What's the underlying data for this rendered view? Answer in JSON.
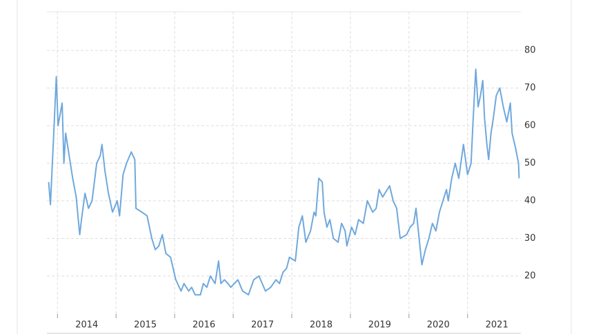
{
  "chart_data": {
    "type": "line",
    "x": [
      2013.85,
      2013.88,
      2013.94,
      2013.98,
      2014.01,
      2014.08,
      2014.11,
      2014.14,
      2014.2,
      2014.26,
      2014.32,
      2014.38,
      2014.41,
      2014.47,
      2014.53,
      2014.59,
      2014.67,
      2014.73,
      2014.76,
      2014.81,
      2014.87,
      2014.94,
      2015.02,
      2015.06,
      2015.12,
      2015.18,
      2015.26,
      2015.32,
      2015.34,
      2015.44,
      2015.53,
      2015.61,
      2015.67,
      2015.73,
      2015.79,
      2015.85,
      2015.93,
      2016.02,
      2016.11,
      2016.16,
      2016.24,
      2016.29,
      2016.35,
      2016.44,
      2016.49,
      2016.55,
      2016.61,
      2016.69,
      2016.75,
      2016.79,
      2016.85,
      2016.91,
      2016.96,
      2017.02,
      2017.08,
      2017.16,
      2017.26,
      2017.35,
      2017.44,
      2017.55,
      2017.64,
      2017.73,
      2017.79,
      2017.85,
      2017.91,
      2017.96,
      2018.06,
      2018.12,
      2018.18,
      2018.24,
      2018.32,
      2018.38,
      2018.41,
      2018.46,
      2018.52,
      2018.55,
      2018.6,
      2018.65,
      2018.71,
      2018.79,
      2018.85,
      2018.91,
      2018.94,
      2019.02,
      2019.08,
      2019.14,
      2019.22,
      2019.29,
      2019.38,
      2019.44,
      2019.49,
      2019.55,
      2019.67,
      2019.73,
      2019.79,
      2019.85,
      2019.96,
      2020.02,
      2020.08,
      2020.12,
      2020.16,
      2020.22,
      2020.28,
      2020.34,
      2020.4,
      2020.46,
      2020.52,
      2020.58,
      2020.64,
      2020.67,
      2020.73,
      2020.79,
      2020.85,
      2020.93,
      2021.0,
      2021.06,
      2021.09,
      2021.14,
      2021.18,
      2021.22,
      2021.26,
      2021.29,
      2021.33,
      2021.36,
      2021.4,
      2021.44,
      2021.49,
      2021.55,
      2021.61,
      2021.67,
      2021.73,
      2021.76,
      2021.82,
      2021.87,
      2021.88
    ],
    "values": [
      45,
      39,
      59,
      73,
      60,
      66,
      50,
      58,
      52,
      46,
      41,
      31,
      35,
      42,
      38,
      40,
      50,
      52,
      55,
      48,
      42,
      37,
      40,
      36,
      47,
      50,
      53,
      51,
      38,
      37,
      36,
      30,
      27,
      28,
      31,
      26,
      25,
      19,
      16,
      18,
      16,
      17,
      15,
      15,
      18,
      17,
      20,
      18,
      24,
      18,
      19,
      18,
      17,
      18,
      19,
      16,
      15,
      19,
      20,
      16,
      17,
      19,
      18,
      21,
      22,
      25,
      24,
      33,
      36,
      29,
      32,
      37,
      36,
      46,
      45,
      37,
      33,
      35,
      30,
      29,
      34,
      32,
      28,
      33,
      31,
      35,
      34,
      40,
      37,
      38,
      43,
      41,
      44,
      40,
      38,
      30,
      31,
      33,
      34,
      38,
      32,
      23,
      27,
      30,
      34,
      32,
      37,
      40,
      43,
      40,
      46,
      50,
      46,
      55,
      47,
      50,
      60,
      75,
      65,
      68,
      72,
      62,
      55,
      51,
      58,
      62,
      68,
      70,
      65,
      61,
      66,
      58,
      54,
      50,
      46
    ],
    "color": "#6fa8dc",
    "xlim": [
      2013.82,
      2021.91
    ],
    "xticks": [
      2014,
      2015,
      2016,
      2017,
      2018,
      2019,
      2020,
      2021
    ],
    "ylim": [
      9.9,
      90.3
    ],
    "yticks": [
      20,
      30,
      40,
      50,
      60,
      70,
      80
    ],
    "grid": true
  }
}
